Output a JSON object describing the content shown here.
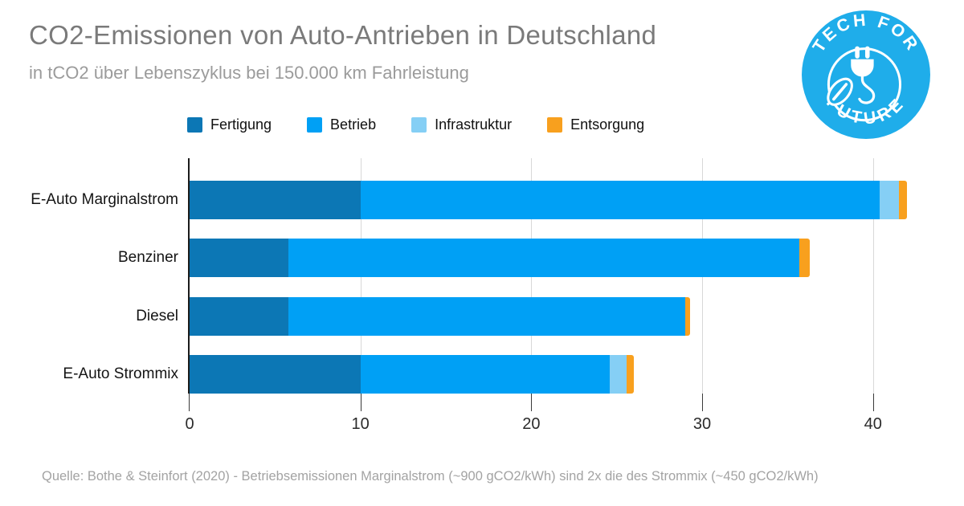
{
  "title": "CO2-Emissionen von Auto-Antrieben in Deutschland",
  "subtitle": "in tCO2 über Lebenszyklus bei 150.000 km Fahrleistung",
  "logo": {
    "top_text": "TECH FOR",
    "bottom_text": "FUTURE",
    "icon": "plug-leaf-icon",
    "color": "#1fadea"
  },
  "footer": "Quelle: Bothe & Steinfort (2020) - Betriebsemissionen Marginalstrom (~900 gCO2/kWh) sind 2x die des Strommix (~450 gCO2/kWh)",
  "colors": {
    "title": "#7a7a7a",
    "subtitle": "#9b9b9b",
    "axis": "#1b1b1b",
    "grid": "#d8d8d8",
    "footer": "#a3a3a3"
  },
  "chart_data": {
    "type": "bar",
    "orientation": "horizontal",
    "stacked": true,
    "title": "CO2-Emissionen von Auto-Antrieben in Deutschland",
    "subtitle": "in tCO2 über Lebenszyklus bei 150.000 km Fahrleistung",
    "categories": [
      "E-Auto Marginalstrom",
      "Benziner",
      "Diesel",
      "E-Auto Strommix"
    ],
    "series": [
      {
        "name": "Fertigung",
        "color": "#0c77b5",
        "values": [
          10.0,
          5.8,
          5.8,
          10.0
        ]
      },
      {
        "name": "Betrieb",
        "color": "#00a0f5",
        "values": [
          30.4,
          29.9,
          23.2,
          14.6
        ]
      },
      {
        "name": "Infrastruktur",
        "color": "#85cff5",
        "values": [
          1.1,
          0,
          0,
          1.0
        ]
      },
      {
        "name": "Entsorgung",
        "color": "#f8a01e",
        "values": [
          0.5,
          0.6,
          0.3,
          0.4
        ]
      }
    ],
    "totals": [
      42.0,
      36.3,
      29.3,
      26.0
    ],
    "x_ticks": [
      0,
      10,
      20,
      30,
      40
    ],
    "xlim": [
      0,
      42.6
    ],
    "xlabel": "",
    "ylabel": "",
    "grid": true,
    "legend_position": "top"
  }
}
